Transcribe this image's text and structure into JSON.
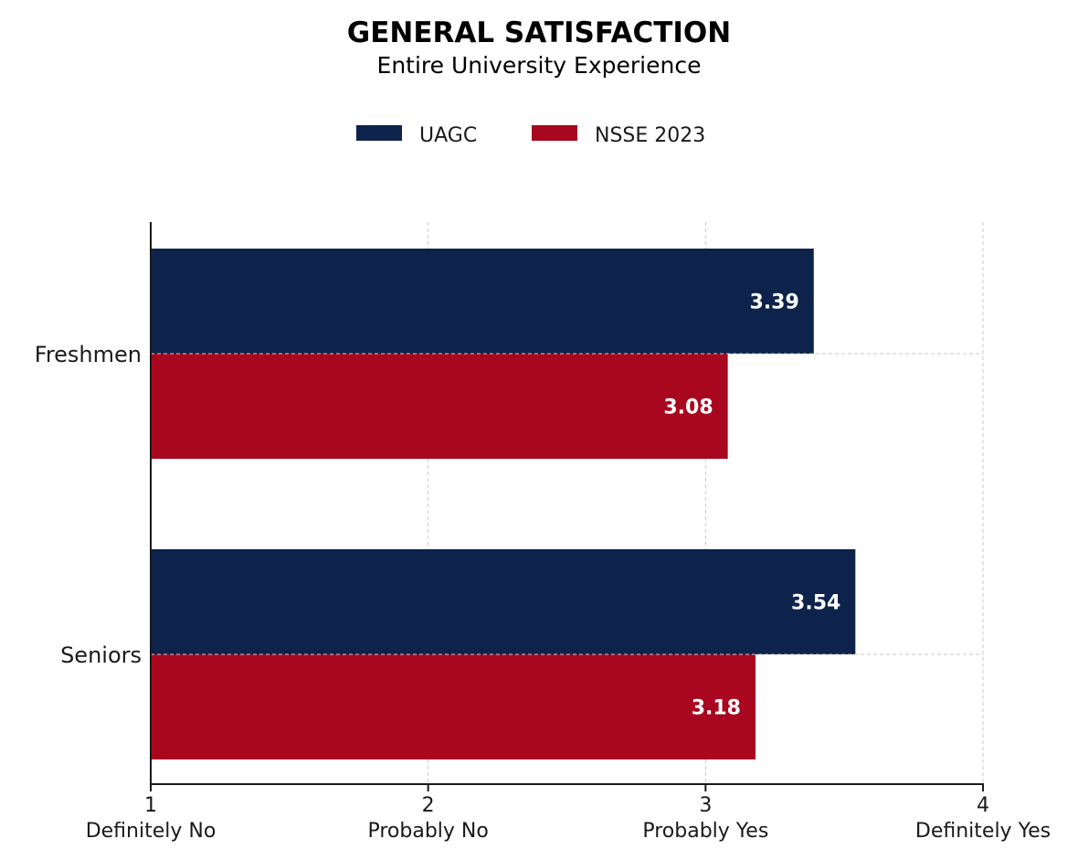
{
  "chart_data": {
    "type": "bar",
    "orientation": "horizontal",
    "title": "GENERAL SATISFACTION",
    "subtitle": "Entire University Experience",
    "categories": [
      "Freshmen",
      "Seniors"
    ],
    "series": [
      {
        "name": "UAGC",
        "color": "#0d234b",
        "values": [
          3.39,
          3.54
        ],
        "labels": [
          "3.39",
          "3.54"
        ]
      },
      {
        "name": "NSSE 2023",
        "color": "#a8071f",
        "values": [
          3.08,
          3.18
        ],
        "labels": [
          "3.08",
          "3.18"
        ]
      }
    ],
    "xlim": [
      1,
      4
    ],
    "xticks": [
      {
        "value": 1,
        "num": "1",
        "text": "Definitely No"
      },
      {
        "value": 2,
        "num": "2",
        "text": "Probably No"
      },
      {
        "value": 3,
        "num": "3",
        "text": "Probably Yes"
      },
      {
        "value": 4,
        "num": "4",
        "text": "Definitely Yes"
      }
    ],
    "grid": true,
    "legend_position": "top-center"
  }
}
